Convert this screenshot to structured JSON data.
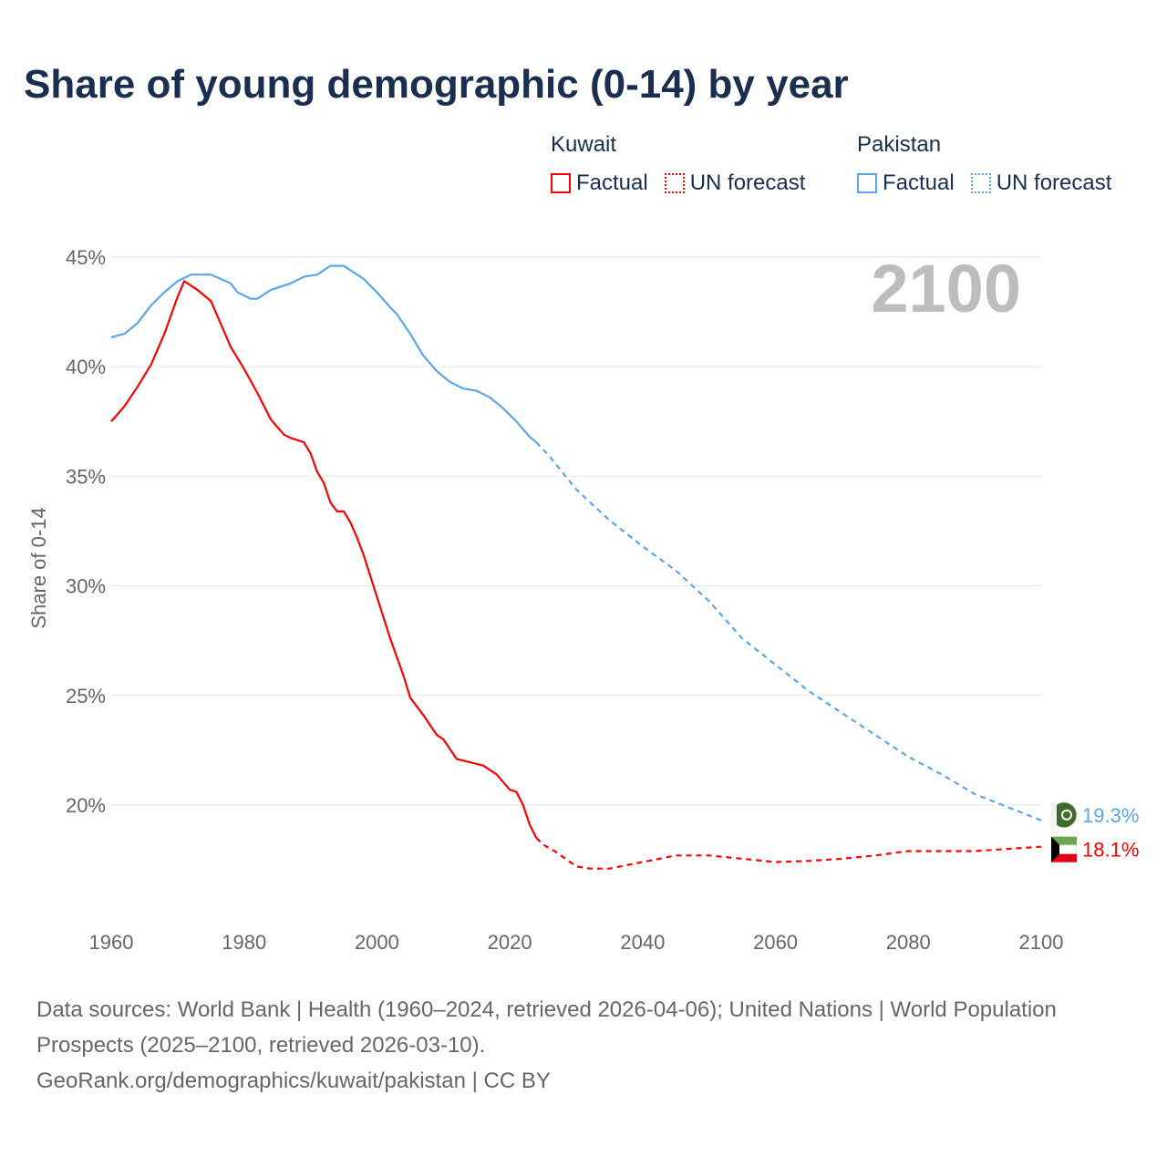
{
  "title": "Share of young demographic (0-14) by year",
  "legend": [
    {
      "country": "Kuwait",
      "factual": "Factual",
      "forecast": "UN forecast",
      "color": "#ff0000"
    },
    {
      "country": "Pakistan",
      "factual": "Factual",
      "forecast": "UN forecast",
      "color": "#5aa5ec"
    }
  ],
  "year_display": "2100",
  "footer": {
    "sources": "Data sources: World Bank | Health (1960–2024, retrieved 2026-04-06); United Nations | World Population Prospects (2025–2100, retrieved 2026-03-10).",
    "credit": "GeoRank.org/demographics/kuwait/pakistan | CC BY"
  },
  "chart_data": {
    "type": "line",
    "title": "Share of young demographic (0-14) by year",
    "xlabel": "",
    "ylabel": "Share of 0-14",
    "xlim": [
      1960,
      2100
    ],
    "ylim": [
      15.5,
      45.5
    ],
    "xticks": [
      1960,
      1980,
      2000,
      2020,
      2040,
      2060,
      2080,
      2100
    ],
    "yticks": [
      20,
      25,
      30,
      35,
      40,
      45
    ],
    "ytick_labels": [
      "20%",
      "25%",
      "30%",
      "35%",
      "40%",
      "45%"
    ],
    "grid": true,
    "forecast_start": 2024,
    "series": [
      {
        "name": "Kuwait",
        "color": "#ff0000",
        "end_label": "18.1%",
        "x": [
          1960,
          1962,
          1964,
          1966,
          1968,
          1970,
          1971,
          1973,
          1975,
          1976,
          1978,
          1980,
          1982,
          1984,
          1986,
          1987,
          1989,
          1990,
          1991,
          1992,
          1993,
          1994,
          1995,
          1996,
          1997,
          1998,
          2000,
          2002,
          2004,
          2005,
          2007,
          2009,
          2010,
          2012,
          2016,
          2018,
          2020,
          2021,
          2022,
          2023,
          2024,
          2025,
          2027,
          2030,
          2032,
          2035,
          2040,
          2045,
          2050,
          2055,
          2060,
          2065,
          2070,
          2075,
          2080,
          2090,
          2095,
          2100
        ],
        "y": [
          37.5,
          38.2,
          39.1,
          40.1,
          41.5,
          43.2,
          43.9,
          43.5,
          43.0,
          42.3,
          40.9,
          39.9,
          38.8,
          37.6,
          36.9,
          36.75,
          36.55,
          36.05,
          35.2,
          34.7,
          33.8,
          33.4,
          33.4,
          32.9,
          32.2,
          31.4,
          29.5,
          27.6,
          25.9,
          24.9,
          24.1,
          23.2,
          23.0,
          22.1,
          21.8,
          21.4,
          20.7,
          20.6,
          20.0,
          19.1,
          18.5,
          18.2,
          17.85,
          17.2,
          17.1,
          17.1,
          17.4,
          17.7,
          17.7,
          17.55,
          17.4,
          17.45,
          17.55,
          17.7,
          17.9,
          17.9,
          18.0,
          18.1
        ]
      },
      {
        "name": "Pakistan",
        "color": "#5aa5ec",
        "end_label": "19.3%",
        "x": [
          1960,
          1962,
          1964,
          1966,
          1968,
          1970,
          1972,
          1975,
          1978,
          1979,
          1981,
          1982,
          1984,
          1987,
          1989,
          1991,
          1993,
          1995,
          1998,
          2000,
          2002,
          2003,
          2005,
          2007,
          2009,
          2011,
          2013,
          2015,
          2017,
          2019,
          2021,
          2023,
          2024,
          2026,
          2030,
          2035,
          2040,
          2045,
          2050,
          2055,
          2060,
          2065,
          2070,
          2075,
          2080,
          2085,
          2090,
          2095,
          2100
        ],
        "y": [
          41.34,
          41.5,
          42.0,
          42.8,
          43.4,
          43.9,
          44.2,
          44.2,
          43.8,
          43.4,
          43.1,
          43.1,
          43.5,
          43.8,
          44.1,
          44.2,
          44.6,
          44.6,
          44.0,
          43.4,
          42.7,
          42.4,
          41.5,
          40.5,
          39.8,
          39.3,
          39.0,
          38.9,
          38.6,
          38.1,
          37.5,
          36.8,
          36.55,
          35.9,
          34.4,
          33.0,
          31.8,
          30.7,
          29.3,
          27.6,
          26.4,
          25.2,
          24.2,
          23.2,
          22.2,
          21.4,
          20.5,
          19.9,
          19.3
        ]
      }
    ]
  }
}
